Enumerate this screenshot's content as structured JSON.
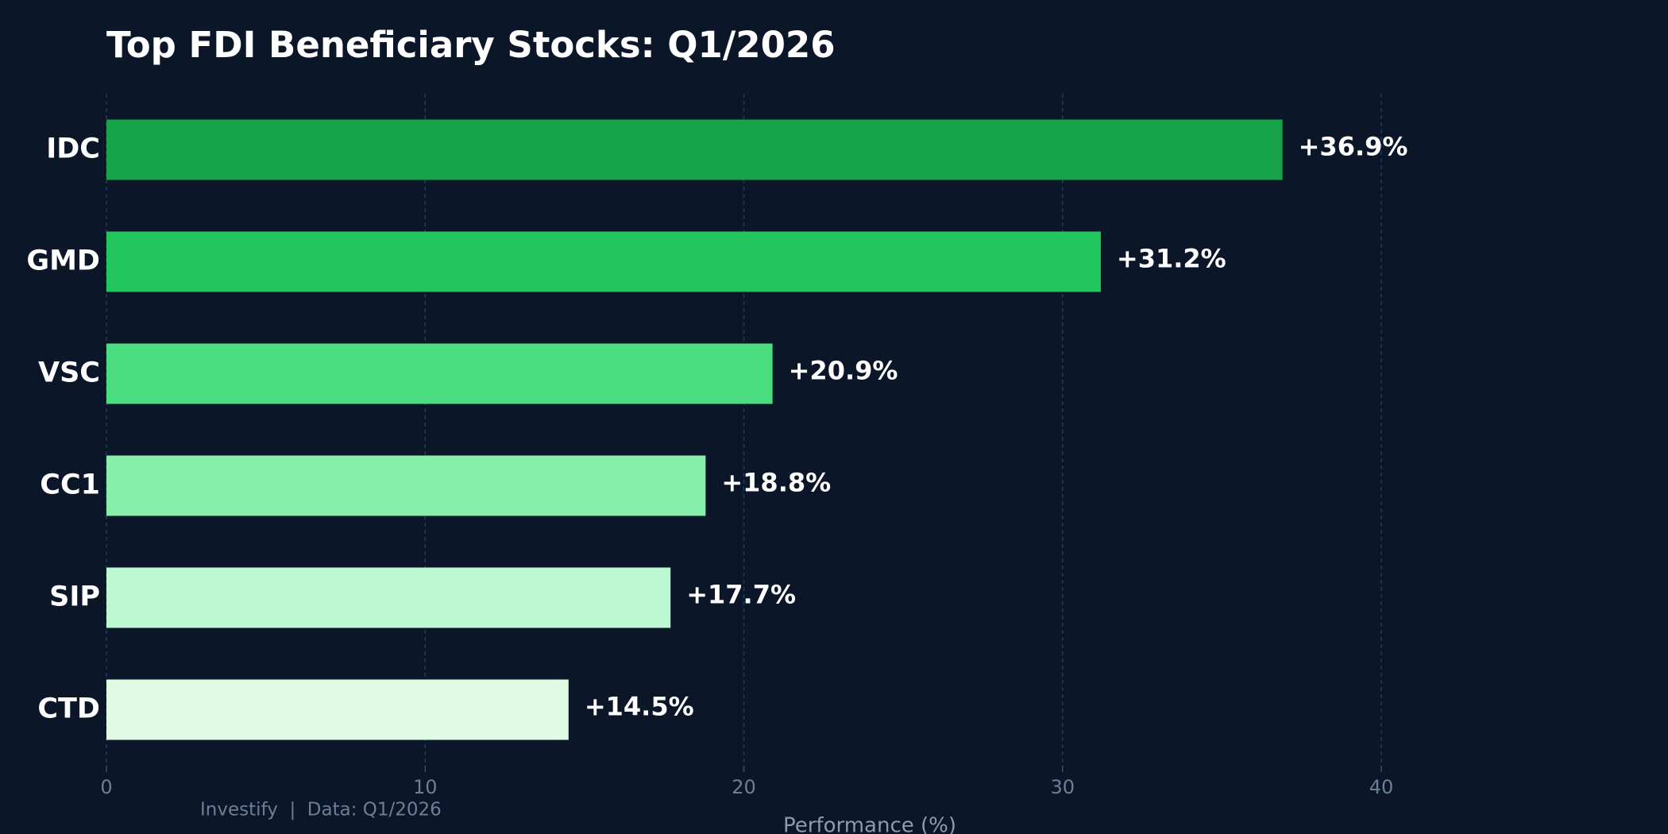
{
  "chart_data": {
    "type": "bar",
    "orientation": "horizontal",
    "title": "Top FDI Beneficiary Stocks: Q1/2026",
    "categories": [
      "IDC",
      "GMD",
      "VSC",
      "CC1",
      "SIP",
      "CTD"
    ],
    "values": [
      36.9,
      31.2,
      20.9,
      18.8,
      17.7,
      14.5
    ],
    "value_labels": [
      "+36.9%",
      "+31.2%",
      "+20.9%",
      "+18.8%",
      "+17.7%",
      "+14.5%"
    ],
    "colors": [
      "#16a34a",
      "#22c55e",
      "#4ade80",
      "#86efac",
      "#bbf7d0",
      "#dffbe6"
    ],
    "xlabel": "Performance (%)",
    "xlim": [
      0,
      48
    ],
    "xticks": [
      0,
      10,
      20,
      30,
      40
    ],
    "grid": true,
    "footer": "Investify  |  Data: Q1/2026"
  }
}
